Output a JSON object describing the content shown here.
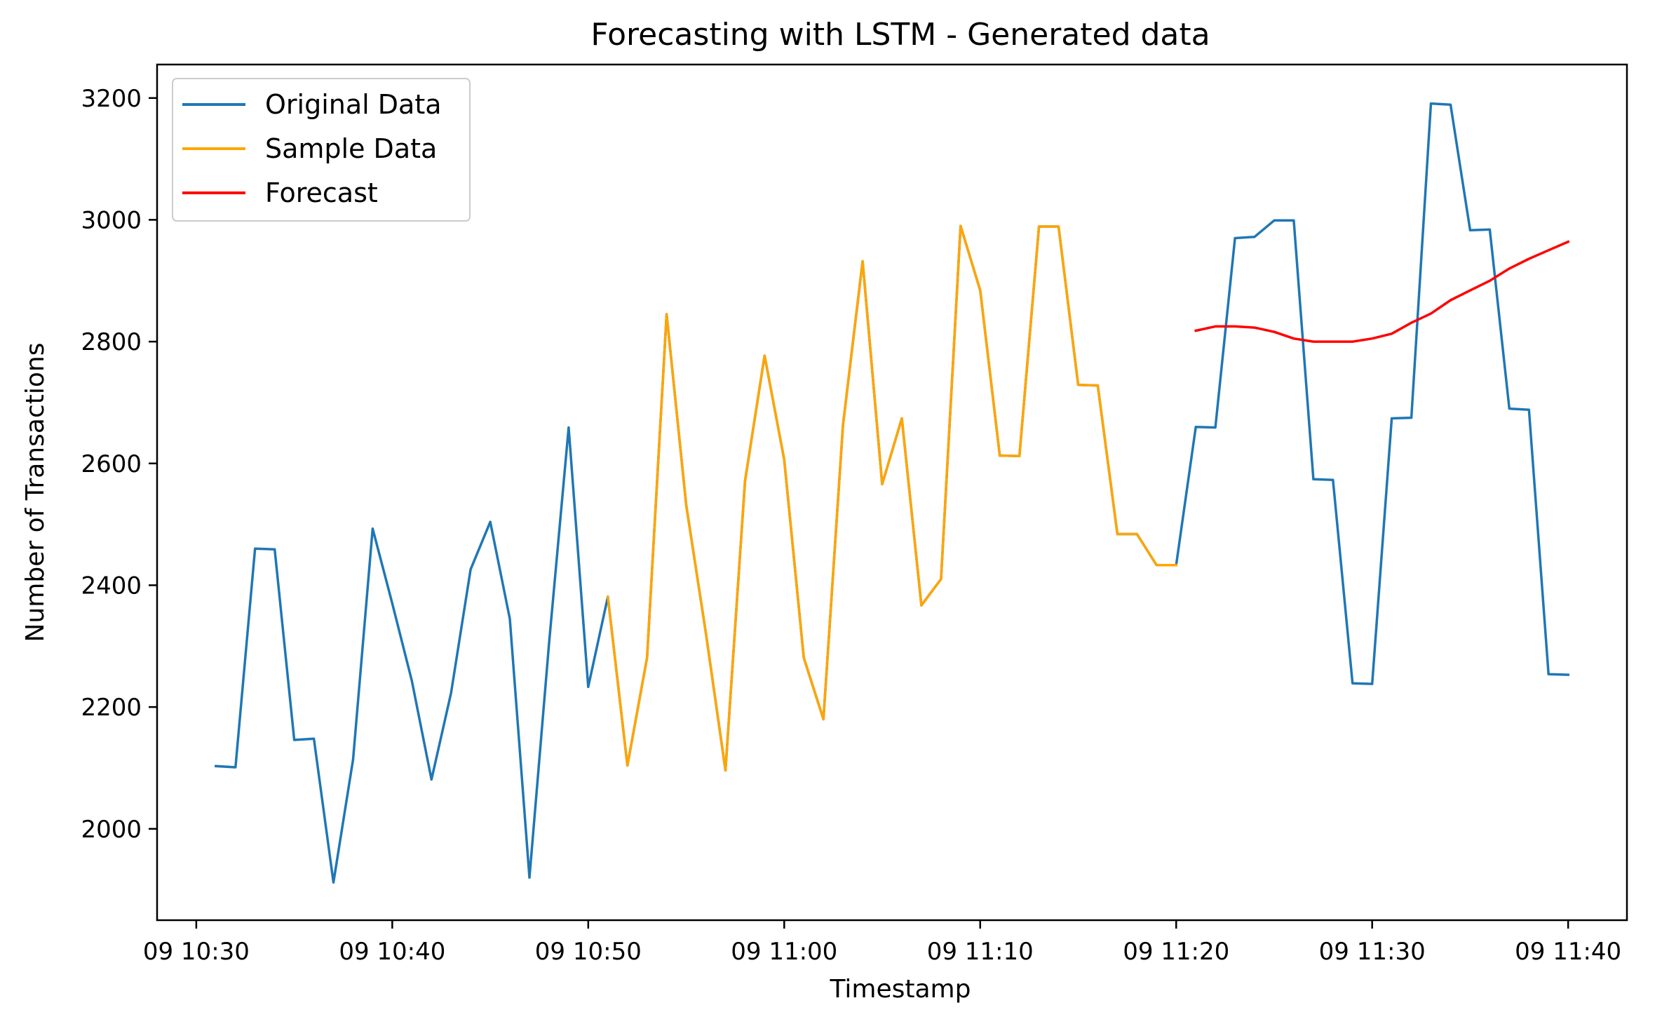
{
  "chart_data": {
    "type": "line",
    "title": "Forecasting with LSTM - Generated data",
    "xlabel": "Timestamp",
    "ylabel": "Number of Transactions",
    "x_unit": "minutes",
    "xlim": [
      "10:28",
      "11:43"
    ],
    "ylim": [
      1850,
      3255
    ],
    "x_ticks": [
      {
        "t": "10:30",
        "label": "09 10:30"
      },
      {
        "t": "10:40",
        "label": "09 10:40"
      },
      {
        "t": "10:50",
        "label": "09 10:50"
      },
      {
        "t": "11:00",
        "label": "09 11:00"
      },
      {
        "t": "11:10",
        "label": "09 11:10"
      },
      {
        "t": "11:20",
        "label": "09 11:20"
      },
      {
        "t": "11:30",
        "label": "09 11:30"
      },
      {
        "t": "11:40",
        "label": "09 11:40"
      }
    ],
    "y_ticks": [
      2000,
      2200,
      2400,
      2600,
      2800,
      3000,
      3200
    ],
    "grid": false,
    "legend_position": "top-left",
    "series": [
      {
        "name": "Original Data",
        "color": "#1f77b4",
        "x": [
          "10:31",
          "10:32",
          "10:33",
          "10:34",
          "10:35",
          "10:36",
          "10:37",
          "10:38",
          "10:39",
          "10:40",
          "10:41",
          "10:42",
          "10:43",
          "10:44",
          "10:45",
          "10:46",
          "10:47",
          "10:48",
          "10:49",
          "10:50",
          "10:51",
          "10:52",
          "10:53",
          "10:54",
          "10:55",
          "10:56",
          "10:57",
          "10:58",
          "10:59",
          "11:00",
          "11:01",
          "11:02",
          "11:03",
          "11:04",
          "11:05",
          "11:06",
          "11:07",
          "11:08",
          "11:09",
          "11:10",
          "11:11",
          "11:12",
          "11:13",
          "11:14",
          "11:15",
          "11:16",
          "11:17",
          "11:18",
          "11:19",
          "11:20",
          "11:21",
          "11:22",
          "11:23",
          "11:24",
          "11:25",
          "11:26",
          "11:27",
          "11:28",
          "11:29",
          "11:30",
          "11:31",
          "11:32",
          "11:33",
          "11:34",
          "11:35",
          "11:36",
          "11:37",
          "11:38",
          "11:39",
          "11:40"
        ],
        "y": [
          2103,
          2101,
          2460,
          2459,
          2146,
          2148,
          1912,
          2114,
          2493,
          2370,
          2243,
          2081,
          2223,
          2426,
          2504,
          2345,
          1920,
          2304,
          2659,
          2233,
          2381,
          2104,
          2281,
          2845,
          2531,
          2322,
          2096,
          2571,
          2777,
          2606,
          2281,
          2180,
          2663,
          2932,
          2566,
          2674,
          2367,
          2410,
          2990,
          2884,
          2613,
          2612,
          2989,
          2989,
          2729,
          2728,
          2484,
          2484,
          2433,
          2433,
          2660,
          2659,
          2970,
          2972,
          2999,
          2999,
          2574,
          2573,
          2239,
          2238,
          2674,
          2675,
          3191,
          3189,
          2983,
          2984,
          2690,
          2688,
          2254,
          2253
        ]
      },
      {
        "name": "Sample Data",
        "color": "#ffa500",
        "x": [
          "10:51",
          "10:52",
          "10:53",
          "10:54",
          "10:55",
          "10:56",
          "10:57",
          "10:58",
          "10:59",
          "11:00",
          "11:01",
          "11:02",
          "11:03",
          "11:04",
          "11:05",
          "11:06",
          "11:07",
          "11:08",
          "11:09",
          "11:10",
          "11:11",
          "11:12",
          "11:13",
          "11:14",
          "11:15",
          "11:16",
          "11:17",
          "11:18",
          "11:19",
          "11:20"
        ],
        "y": [
          2381,
          2104,
          2281,
          2845,
          2531,
          2322,
          2096,
          2571,
          2777,
          2606,
          2281,
          2180,
          2663,
          2932,
          2566,
          2674,
          2367,
          2410,
          2990,
          2884,
          2613,
          2612,
          2989,
          2989,
          2729,
          2728,
          2484,
          2484,
          2433,
          2433
        ]
      },
      {
        "name": "Forecast",
        "color": "#ff0000",
        "x": [
          "11:21",
          "11:22",
          "11:23",
          "11:24",
          "11:25",
          "11:26",
          "11:27",
          "11:28",
          "11:29",
          "11:30",
          "11:31",
          "11:32",
          "11:33",
          "11:34",
          "11:35",
          "11:36",
          "11:37",
          "11:38",
          "11:39",
          "11:40"
        ],
        "y": [
          2818,
          2825,
          2825,
          2823,
          2816,
          2805,
          2800,
          2800,
          2800,
          2805,
          2813,
          2831,
          2846,
          2868,
          2884,
          2900,
          2920,
          2936,
          2950,
          2964
        ]
      }
    ]
  }
}
